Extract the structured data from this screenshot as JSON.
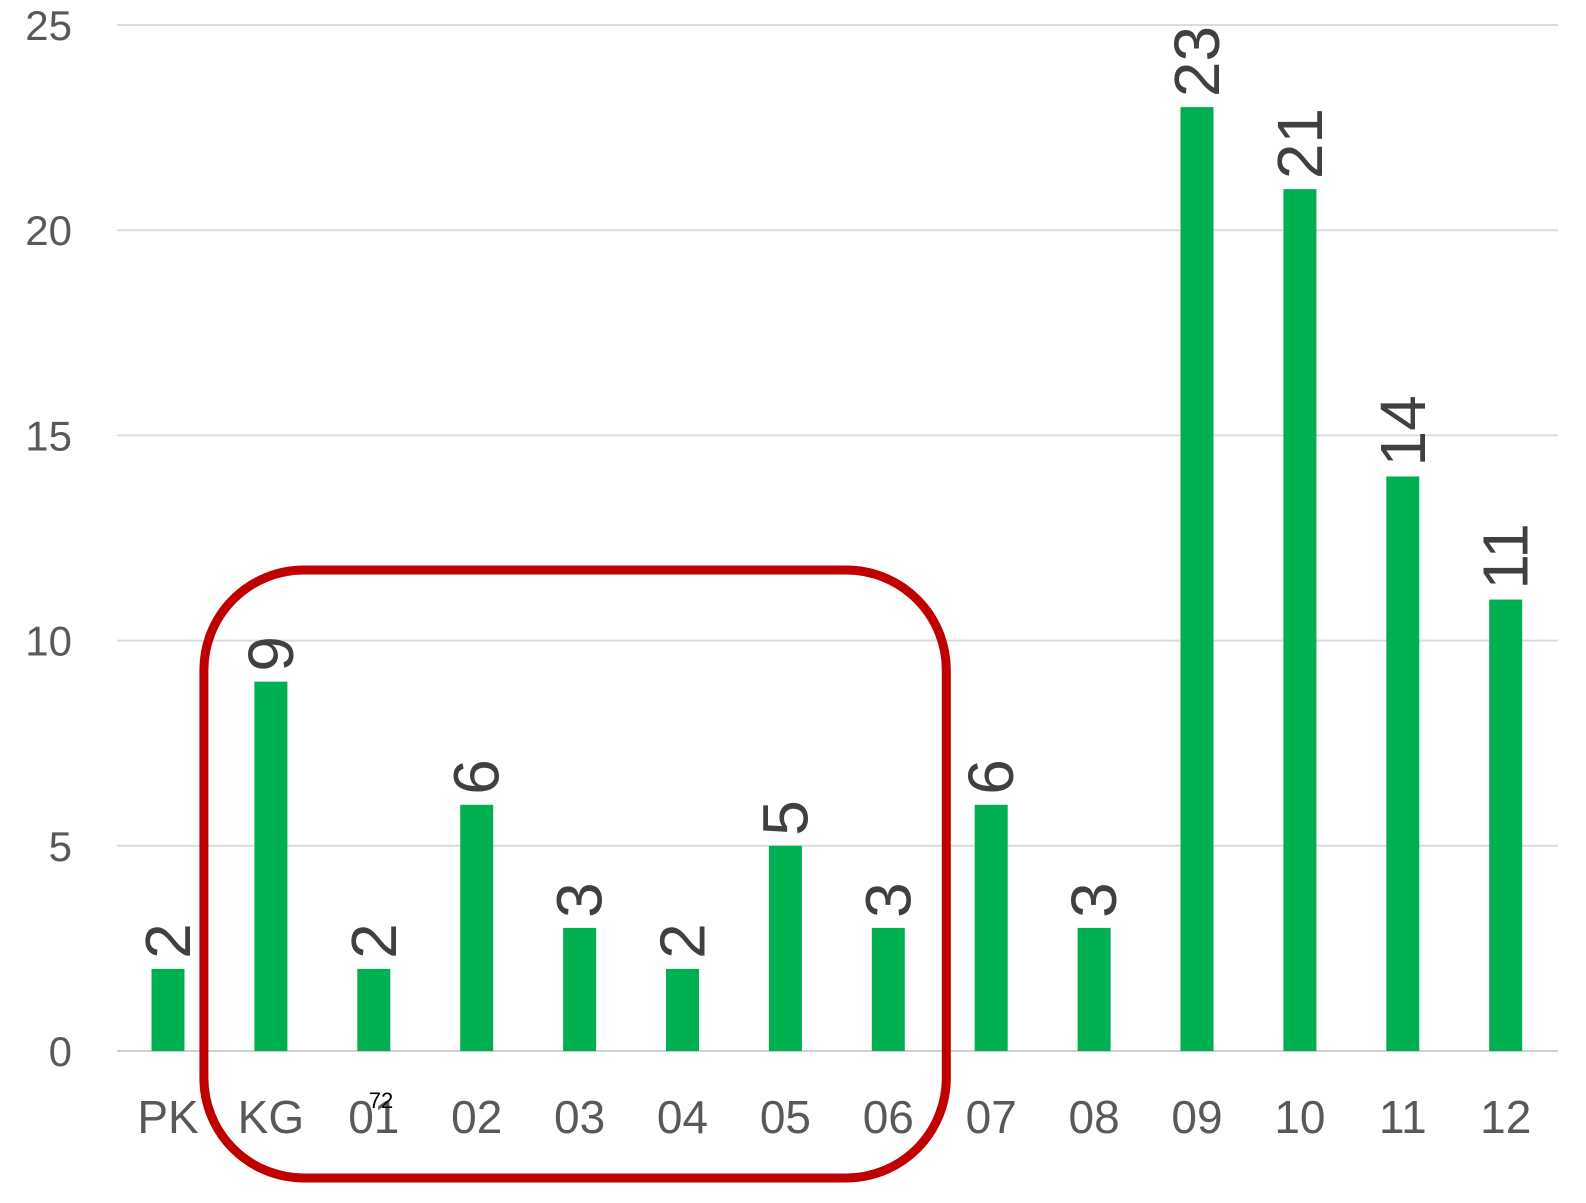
{
  "chart_data": {
    "type": "bar",
    "title": "",
    "xlabel": "",
    "ylabel": "",
    "categories": [
      "PK",
      "KG",
      "01",
      "02",
      "03",
      "04",
      "05",
      "06",
      "07",
      "08",
      "09",
      "10",
      "11",
      "12"
    ],
    "values": [
      2,
      9,
      2,
      6,
      3,
      2,
      5,
      3,
      6,
      3,
      23,
      21,
      14,
      11
    ],
    "ylim": [
      0,
      25
    ],
    "yticks": [
      "0",
      "5",
      "10",
      "15",
      "20",
      "25"
    ],
    "grid": true,
    "legend": "none",
    "bar_color": "#00b050",
    "highlight": {
      "from_category": "KG",
      "to_category": "06",
      "color": "#c00000"
    },
    "annotation": "72"
  }
}
